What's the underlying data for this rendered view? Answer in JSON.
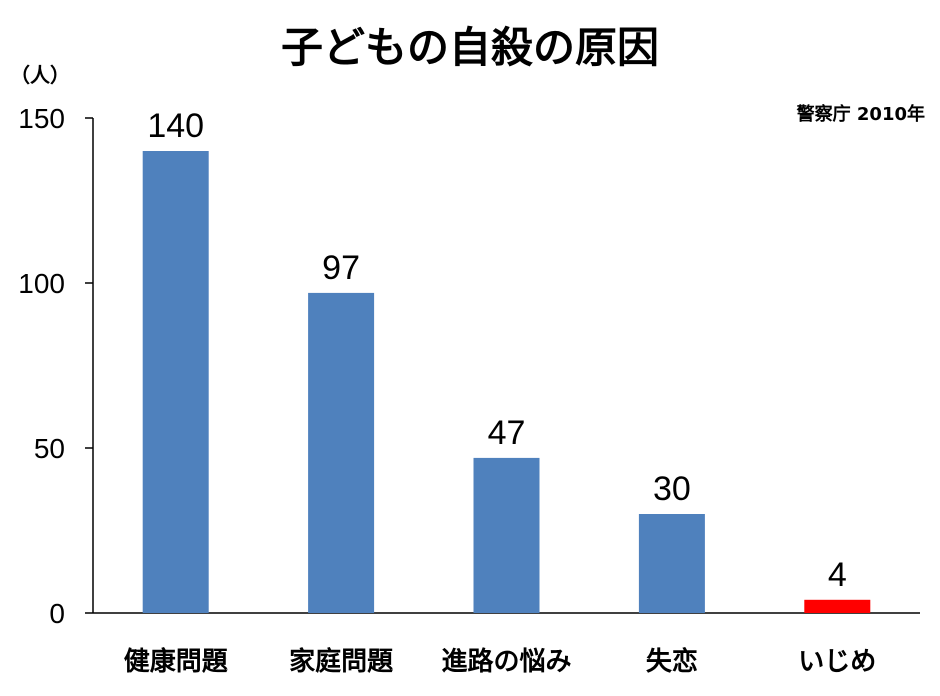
{
  "chart_data": {
    "type": "bar",
    "title": "子どもの自殺の原因",
    "unit_label": "（人）",
    "source": "警察庁  2010年",
    "categories": [
      "健康問題",
      "家庭問題",
      "進路の悩み",
      "失恋",
      "いじめ"
    ],
    "values": [
      140,
      97,
      47,
      30,
      4
    ],
    "data_labels": [
      "140",
      "97",
      "47",
      "30",
      "4"
    ],
    "bar_colors": [
      "#4f81bd",
      "#4f81bd",
      "#4f81bd",
      "#4f81bd",
      "#ff0000"
    ],
    "ylim": [
      0,
      150
    ],
    "yticks": [
      0,
      50,
      100,
      150
    ],
    "ytick_labels": [
      "0",
      "50",
      "100",
      "150"
    ],
    "grid": false,
    "legend": "none"
  }
}
